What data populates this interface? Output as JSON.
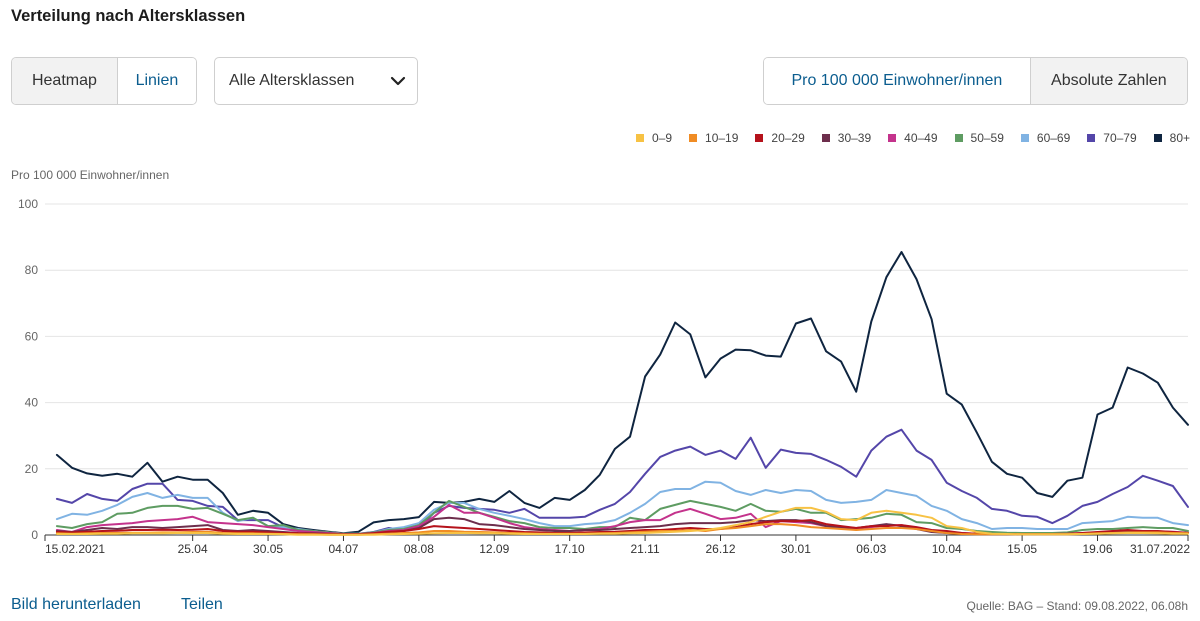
{
  "header": {
    "title": "Verteilung nach Altersklassen"
  },
  "controls": {
    "view_toggle": [
      {
        "label": "Heatmap",
        "selected": false
      },
      {
        "label": "Linien",
        "selected": true
      }
    ],
    "age_select": {
      "value": "Alle Altersklassen",
      "icon": "chevron-down-icon"
    },
    "unit_toggle": [
      {
        "label": "Pro 100 000 Einwohner/innen",
        "selected": true
      },
      {
        "label": "Absolute Zahlen",
        "selected": false
      }
    ]
  },
  "footer": {
    "download_label": "Bild herunterladen",
    "share_label": "Teilen",
    "source": "Quelle: BAG – Stand: 09.08.2022, 06.08h"
  },
  "chart_data": {
    "type": "line",
    "title": "Verteilung nach Altersklassen",
    "xlabel": "",
    "ylabel": "Pro 100 000 Einwohner/innen",
    "ylim": [
      0,
      100
    ],
    "y_ticks": [
      0,
      20,
      40,
      60,
      80,
      100
    ],
    "grid": true,
    "legend_position": "top-right",
    "x_range": [
      "2021-02-15",
      "2022-07-31"
    ],
    "x_start": "2021-02-21",
    "x_step_days": 7,
    "x_ticks": [
      {
        "label": "15.02.2021",
        "date": "2021-02-15"
      },
      {
        "label": "25.04",
        "date": "2021-04-25"
      },
      {
        "label": "30.05",
        "date": "2021-05-30"
      },
      {
        "label": "04.07",
        "date": "2021-07-04"
      },
      {
        "label": "08.08",
        "date": "2021-08-08"
      },
      {
        "label": "12.09",
        "date": "2021-09-12"
      },
      {
        "label": "17.10",
        "date": "2021-10-17"
      },
      {
        "label": "21.11",
        "date": "2021-11-21"
      },
      {
        "label": "26.12",
        "date": "2021-12-26"
      },
      {
        "label": "30.01",
        "date": "2022-01-30"
      },
      {
        "label": "06.03",
        "date": "2022-03-06"
      },
      {
        "label": "10.04",
        "date": "2022-04-10"
      },
      {
        "label": "15.05",
        "date": "2022-05-15"
      },
      {
        "label": "19.06",
        "date": "2022-06-19"
      },
      {
        "label": "31.07.2022",
        "date": "2022-07-31"
      }
    ],
    "series": [
      {
        "name": "0–9",
        "color": "#f7c244",
        "values": [
          0.3,
          0.3,
          0.3,
          0.4,
          0.4,
          0.5,
          0.5,
          0.5,
          0.6,
          0.6,
          0.6,
          0.4,
          0.3,
          0.3,
          0.3,
          0.2,
          0.1,
          0.1,
          0.1,
          0.1,
          0.1,
          0.1,
          0.2,
          0.3,
          0.4,
          0.5,
          0.6,
          0.6,
          0.5,
          0.5,
          0.4,
          0.3,
          0.3,
          0.3,
          0.3,
          0.3,
          0.4,
          0.4,
          0.5,
          0.6,
          0.8,
          1.0,
          1.2,
          1.5,
          2.1,
          3.0,
          3.9,
          5.5,
          7.0,
          8.2,
          8.2,
          7.0,
          4.8,
          4.5,
          6.7,
          7.3,
          6.7,
          6.1,
          5.2,
          2.7,
          2.1,
          0.9,
          0.4,
          0.3,
          0.2,
          0.2,
          0.2,
          0.2,
          0.3,
          0.4,
          0.5,
          0.6,
          0.6,
          0.5,
          0.4,
          0.4
        ]
      },
      {
        "name": "10–19",
        "color": "#f08c24",
        "values": [
          0.5,
          0.4,
          0.5,
          0.6,
          0.6,
          0.7,
          0.7,
          0.8,
          0.8,
          0.9,
          1.0,
          0.6,
          0.5,
          0.5,
          0.4,
          0.3,
          0.2,
          0.2,
          0.1,
          0.1,
          0.1,
          0.2,
          0.4,
          0.6,
          0.8,
          1.2,
          1.2,
          1.0,
          0.9,
          0.8,
          0.6,
          0.5,
          0.4,
          0.4,
          0.4,
          0.4,
          0.5,
          0.6,
          0.8,
          1.0,
          1.2,
          1.2,
          1.5,
          1.2,
          1.8,
          2.1,
          2.7,
          3.3,
          3.3,
          3.0,
          2.4,
          2.1,
          1.8,
          1.5,
          1.8,
          2.1,
          2.1,
          1.8,
          1.2,
          0.6,
          0.3,
          0.2,
          0.2,
          0.2,
          0.2,
          0.2,
          0.2,
          0.2,
          0.3,
          0.5,
          0.6,
          0.8,
          0.8,
          0.8,
          0.6,
          0.5
        ]
      },
      {
        "name": "20–29",
        "color": "#b5121b",
        "values": [
          0.9,
          0.8,
          1.0,
          1.2,
          1.3,
          1.5,
          1.5,
          1.6,
          1.5,
          1.6,
          1.8,
          1.2,
          1.0,
          1.0,
          0.8,
          0.6,
          0.5,
          0.4,
          0.3,
          0.2,
          0.2,
          0.5,
          1.0,
          1.2,
          1.8,
          2.7,
          2.4,
          2.1,
          1.8,
          1.5,
          1.2,
          0.9,
          0.8,
          0.6,
          0.6,
          0.8,
          0.9,
          1.0,
          1.2,
          1.5,
          1.5,
          1.8,
          2.1,
          1.8,
          1.8,
          2.4,
          3.3,
          3.9,
          4.2,
          4.2,
          4.5,
          3.3,
          2.7,
          2.1,
          2.7,
          2.7,
          3.0,
          2.4,
          1.5,
          1.2,
          0.6,
          0.4,
          0.3,
          0.3,
          0.3,
          0.3,
          0.3,
          0.4,
          0.6,
          0.9,
          1.2,
          1.5,
          1.2,
          1.2,
          0.9,
          0.6
        ]
      },
      {
        "name": "30–39",
        "color": "#6d2e4c",
        "values": [
          1.2,
          0.9,
          1.5,
          2.1,
          1.8,
          2.4,
          2.4,
          2.1,
          2.4,
          2.7,
          3.0,
          1.5,
          1.2,
          1.5,
          1.2,
          0.9,
          0.6,
          0.5,
          0.4,
          0.2,
          0.2,
          0.5,
          0.9,
          1.2,
          2.1,
          4.8,
          5.2,
          4.8,
          3.3,
          3.0,
          2.4,
          1.8,
          1.5,
          1.2,
          1.2,
          1.5,
          1.5,
          1.8,
          2.1,
          2.4,
          2.7,
          3.3,
          3.6,
          3.6,
          3.6,
          3.9,
          4.5,
          4.2,
          4.5,
          4.5,
          3.9,
          2.7,
          2.4,
          2.1,
          2.7,
          3.3,
          2.7,
          1.8,
          0.9,
          0.6,
          0.4,
          0.3,
          0.2,
          0.2,
          0.2,
          0.2,
          0.2,
          0.3,
          0.4,
          0.6,
          0.7,
          0.9,
          1.0,
          0.9,
          0.8,
          0.6
        ]
      },
      {
        "name": "40–49",
        "color": "#c4338c",
        "values": [
          1.5,
          0.9,
          2.4,
          3.0,
          3.3,
          3.6,
          4.2,
          4.5,
          4.8,
          5.5,
          3.9,
          3.6,
          3.3,
          3.0,
          2.4,
          1.8,
          1.2,
          0.9,
          0.6,
          0.3,
          0.3,
          0.6,
          1.2,
          1.5,
          2.7,
          5.5,
          9.1,
          6.7,
          6.7,
          5.2,
          3.6,
          2.4,
          1.8,
          1.5,
          1.2,
          1.5,
          1.8,
          2.7,
          3.9,
          4.5,
          4.5,
          6.7,
          7.9,
          6.4,
          4.8,
          5.2,
          6.4,
          2.4,
          4.2,
          3.9,
          3.6,
          2.7,
          2.1,
          1.8,
          2.4,
          3.0,
          3.0,
          2.1,
          1.2,
          0.9,
          0.6,
          0.4,
          0.3,
          0.3,
          0.3,
          0.3,
          0.3,
          0.4,
          0.6,
          0.8,
          0.9,
          1.0,
          1.2,
          1.1,
          1.0,
          0.7
        ]
      },
      {
        "name": "50–59",
        "color": "#5e9c62",
        "values": [
          2.7,
          2.1,
          3.3,
          3.9,
          6.4,
          6.7,
          8.2,
          8.8,
          8.8,
          7.9,
          8.2,
          6.4,
          4.5,
          5.2,
          2.7,
          3.0,
          1.5,
          1.2,
          0.8,
          0.4,
          0.4,
          0.8,
          1.5,
          1.8,
          3.0,
          6.7,
          10.3,
          8.5,
          6.7,
          5.5,
          4.2,
          3.6,
          2.4,
          2.1,
          2.1,
          1.8,
          2.4,
          2.4,
          5.2,
          4.5,
          7.9,
          9.1,
          10.3,
          9.4,
          8.5,
          7.3,
          9.4,
          7.3,
          7.0,
          7.9,
          6.7,
          6.7,
          4.5,
          4.8,
          5.2,
          6.4,
          6.1,
          3.9,
          3.6,
          2.1,
          1.8,
          1.2,
          0.9,
          0.7,
          0.6,
          0.6,
          0.6,
          0.8,
          1.5,
          1.8,
          1.8,
          2.1,
          2.4,
          2.1,
          2.1,
          1.2
        ]
      },
      {
        "name": "60–69",
        "color": "#80b3e3",
        "values": [
          4.8,
          6.4,
          6.1,
          7.3,
          9.1,
          11.5,
          12.7,
          11.2,
          12.1,
          11.2,
          11.2,
          6.7,
          4.2,
          5.2,
          2.7,
          2.4,
          1.8,
          1.2,
          0.8,
          0.4,
          0.4,
          0.8,
          1.8,
          2.4,
          3.6,
          7.6,
          9.7,
          9.7,
          7.9,
          6.7,
          5.8,
          4.8,
          3.6,
          2.7,
          2.7,
          3.3,
          3.6,
          4.5,
          6.7,
          9.4,
          13.0,
          13.9,
          13.9,
          16.1,
          15.8,
          13.3,
          12.1,
          13.6,
          12.7,
          13.6,
          13.3,
          10.6,
          9.7,
          10.0,
          10.6,
          13.6,
          12.7,
          11.8,
          8.8,
          7.3,
          4.8,
          3.6,
          1.8,
          2.1,
          2.1,
          1.8,
          1.8,
          1.8,
          3.6,
          3.9,
          4.2,
          5.5,
          5.2,
          5.2,
          3.6,
          3.0
        ]
      },
      {
        "name": "70–79",
        "color": "#5446a9",
        "values": [
          10.9,
          9.7,
          12.4,
          10.9,
          10.3,
          13.9,
          15.5,
          15.5,
          10.6,
          10.3,
          8.8,
          8.5,
          4.5,
          4.5,
          4.5,
          2.4,
          1.5,
          1.2,
          0.8,
          0.4,
          0.4,
          0.9,
          2.1,
          1.5,
          2.1,
          6.7,
          8.8,
          8.2,
          7.9,
          7.6,
          6.7,
          7.9,
          5.2,
          5.2,
          5.2,
          5.5,
          7.6,
          9.4,
          13.0,
          18.5,
          23.6,
          25.5,
          26.7,
          24.2,
          25.5,
          23.0,
          29.4,
          20.3,
          25.8,
          24.8,
          24.5,
          22.7,
          20.6,
          17.6,
          25.5,
          29.7,
          31.8,
          25.5,
          22.7,
          15.8,
          13.3,
          11.2,
          7.9,
          7.3,
          5.8,
          5.5,
          3.6,
          5.8,
          8.8,
          10.0,
          12.4,
          14.5,
          17.9,
          16.4,
          14.8,
          8.5
        ]
      },
      {
        "name": "80+",
        "color": "#0f2540",
        "values": [
          24.2,
          20.3,
          18.6,
          17.9,
          18.5,
          17.6,
          21.8,
          16.1,
          17.6,
          16.7,
          16.7,
          12.7,
          6.1,
          7.3,
          6.7,
          3.3,
          2.1,
          1.5,
          1.0,
          0.5,
          1.0,
          3.8,
          4.5,
          4.8,
          5.4,
          10.0,
          9.7,
          10.0,
          10.9,
          10.0,
          13.3,
          9.7,
          8.2,
          11.2,
          10.6,
          13.6,
          18.2,
          26.0,
          29.7,
          47.9,
          54.5,
          64.2,
          60.6,
          47.6,
          53.3,
          56.0,
          55.8,
          54.2,
          53.9,
          63.9,
          65.4,
          55.5,
          52.4,
          43.3,
          64.5,
          77.9,
          85.5,
          77.3,
          65.2,
          42.7,
          39.4,
          30.9,
          22.1,
          18.5,
          17.3,
          12.7,
          11.5,
          16.4,
          17.3,
          36.4,
          38.5,
          50.6,
          48.8,
          46.0,
          38.5,
          33.3
        ]
      }
    ]
  }
}
